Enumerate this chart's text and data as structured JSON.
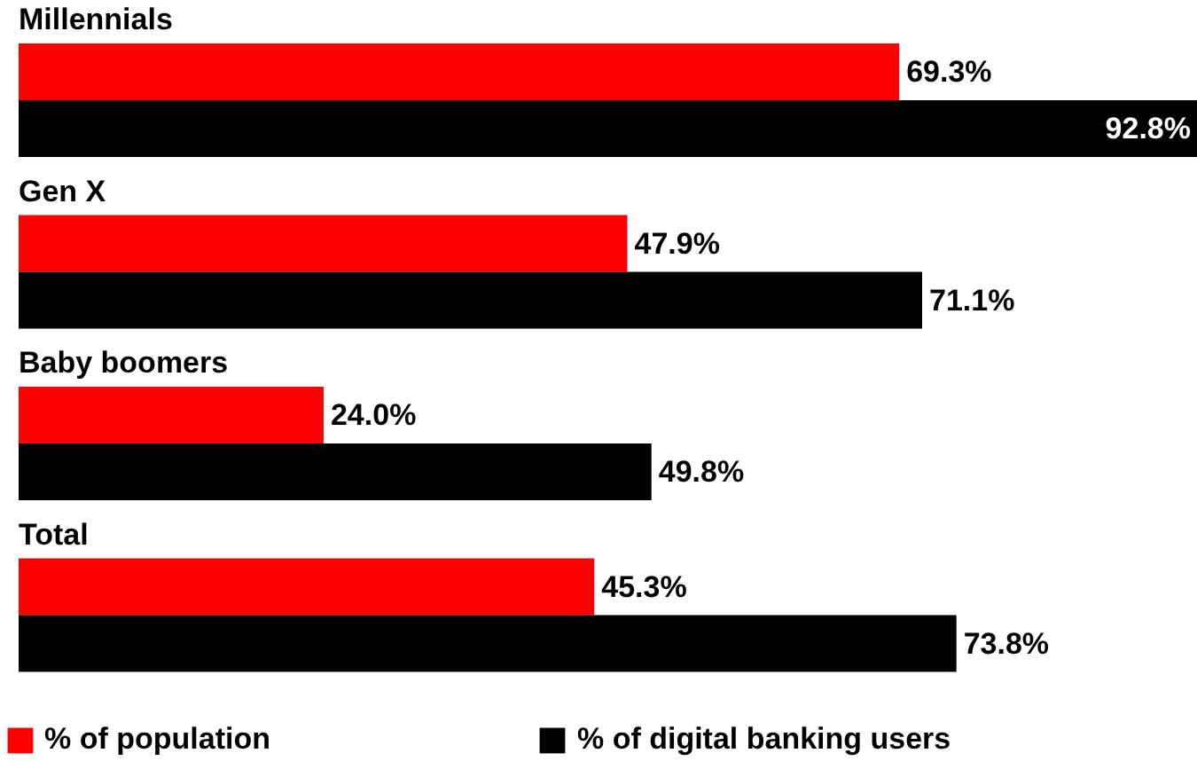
{
  "chart_data": {
    "type": "bar",
    "orientation": "horizontal",
    "categories": [
      "Millennials",
      "Gen X",
      "Baby boomers",
      "Total"
    ],
    "series": [
      {
        "name": "% of population",
        "color": "#ff0000",
        "values": [
          69.3,
          47.9,
          24.0,
          45.3
        ],
        "value_labels": [
          "69.3%",
          "47.9%",
          "24.0%",
          "45.3%"
        ]
      },
      {
        "name": "% of digital banking users",
        "color": "#000000",
        "values": [
          92.8,
          71.1,
          49.8,
          73.8
        ],
        "value_labels": [
          "92.8%",
          "71.1%",
          "49.8%",
          "73.8%"
        ]
      }
    ],
    "legend": "bottom",
    "grid": false
  }
}
